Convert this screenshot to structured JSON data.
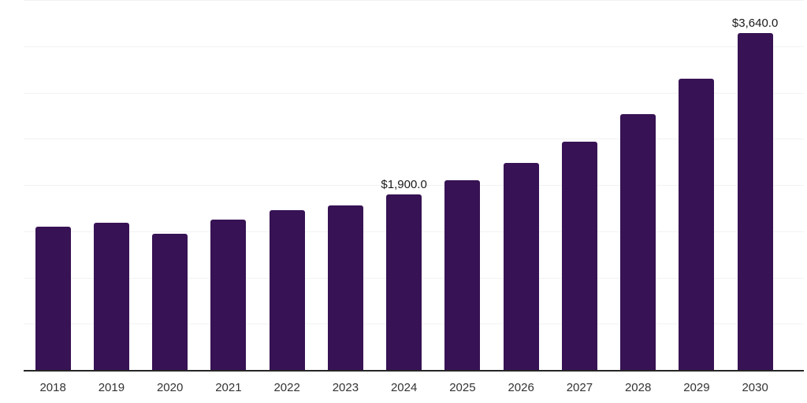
{
  "chart_data": {
    "type": "bar",
    "title": "",
    "xlabel": "",
    "ylabel": "",
    "categories": [
      "2018",
      "2019",
      "2020",
      "2021",
      "2022",
      "2023",
      "2024",
      "2025",
      "2026",
      "2027",
      "2028",
      "2029",
      "2030"
    ],
    "values": [
      1545,
      1595,
      1470,
      1625,
      1725,
      1775,
      1900,
      2050,
      2235,
      2470,
      2765,
      3150,
      3640
    ],
    "point_labels": {
      "2024": "$1,900.0",
      "2030": "$3,640.0"
    },
    "ylim": [
      0,
      4000
    ],
    "gridline_step": 500,
    "grid": "horizontal",
    "legend_position": "none",
    "colors": {
      "bar_fill": "#371254",
      "gridline": "#f2f2f2",
      "axis_line": "#262626",
      "tick_label": "#333333",
      "point_label": "#1a1a1a",
      "background": "#ffffff"
    }
  }
}
